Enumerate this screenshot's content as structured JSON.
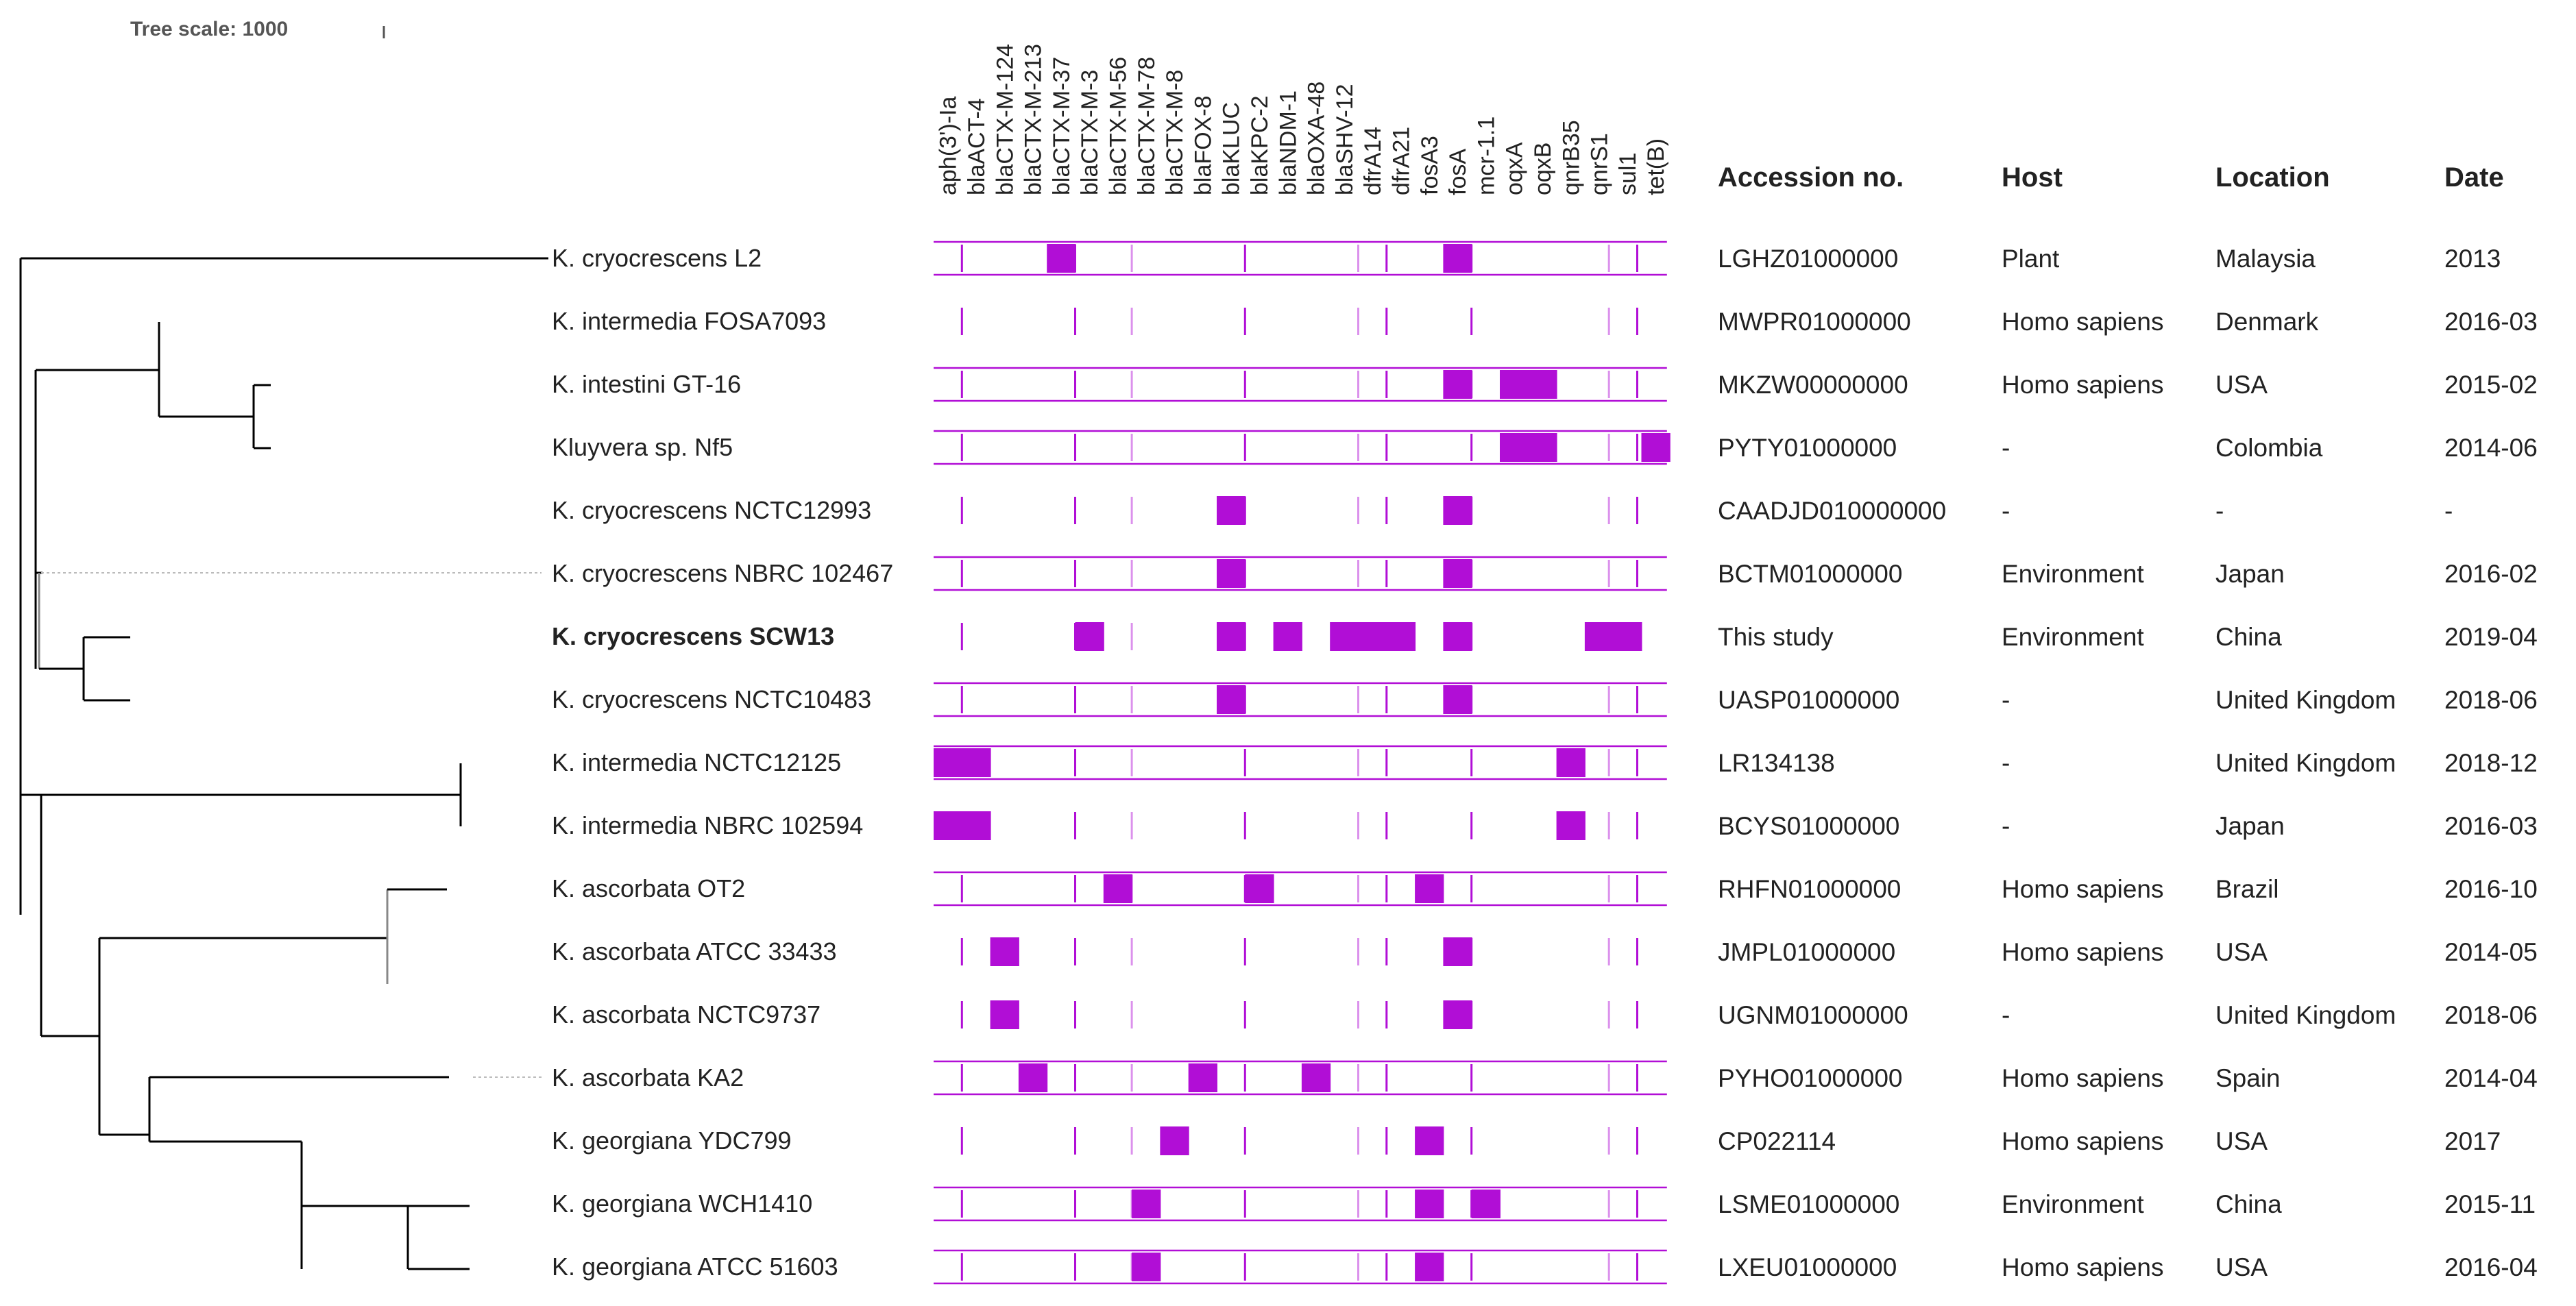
{
  "tree_scale": {
    "label": "Tree scale: 1000"
  },
  "headers": {
    "accession": "Accession no.",
    "host": "Host",
    "location": "Location",
    "date": "Date"
  },
  "genes": [
    "aph(3')-Ia",
    "blaACT-4",
    "blaCTX-M-124",
    "blaCTX-M-213",
    "blaCTX-M-37",
    "blaCTX-M-3",
    "blaCTX-M-56",
    "blaCTX-M-78",
    "blaCTX-M-8",
    "blaFOX-8",
    "blaKLUC",
    "blaKPC-2",
    "blaNDM-1",
    "blaOXA-48",
    "blaSHV-12",
    "dfrA14",
    "dfrA21",
    "fosA3",
    "fosA",
    "mcr-1.1",
    "oqxA",
    "oqxB",
    "qnrB35",
    "qnrS1",
    "sul1",
    "tet(B)"
  ],
  "colors": {
    "present": "#b10ed6",
    "line": "#b10ed6",
    "tick": "#b10ed6",
    "tree": "#000000",
    "text": "#222222"
  },
  "strains": [
    {
      "name": "K. cryocrescens L2",
      "bold": false,
      "accession": "LGHZ01000000",
      "host": "Plant",
      "location": "Malaysia",
      "date": "2013",
      "genes": [
        "blaCTX-M-37",
        "fosA"
      ]
    },
    {
      "name": "K. intermedia FOSA7093",
      "bold": false,
      "accession": "MWPR01000000",
      "host": "Homo sapiens",
      "location": "Denmark",
      "date": "2016-03",
      "genes": []
    },
    {
      "name": "K. intestini GT-16",
      "bold": false,
      "accession": "MKZW00000000",
      "host": "Homo sapiens",
      "location": "USA",
      "date": "2015-02",
      "genes": [
        "fosA",
        "oqxA",
        "oqxB"
      ]
    },
    {
      "name": "Kluyvera sp. Nf5",
      "bold": false,
      "accession": "PYTY01000000",
      "host": "-",
      "location": "Colombia",
      "date": "2014-06",
      "genes": [
        "oqxA",
        "oqxB",
        "tet(B)"
      ]
    },
    {
      "name": "K. cryocrescens NCTC12993",
      "bold": false,
      "accession": "CAADJD010000000",
      "host": "-",
      "location": "-",
      "date": "-",
      "genes": [
        "blaKLUC",
        "fosA"
      ]
    },
    {
      "name": "K. cryocrescens NBRC 102467",
      "bold": false,
      "accession": "BCTM01000000",
      "host": "Environment",
      "location": "Japan",
      "date": "2016-02",
      "genes": [
        "blaKLUC",
        "fosA"
      ]
    },
    {
      "name": "K. cryocrescens SCW13",
      "bold": true,
      "accession": "This study",
      "host": "Environment",
      "location": "China",
      "date": "2019-04",
      "genes": [
        "blaCTX-M-3",
        "blaKLUC",
        "blaNDM-1",
        "blaSHV-12",
        "dfrA14",
        "dfrA21",
        "fosA",
        "qnrS1",
        "sul1"
      ]
    },
    {
      "name": "K. cryocrescens NCTC10483",
      "bold": false,
      "accession": "UASP01000000",
      "host": "-",
      "location": "United Kingdom",
      "date": "2018-06",
      "genes": [
        "blaKLUC",
        "fosA"
      ]
    },
    {
      "name": "K. intermedia NCTC12125",
      "bold": false,
      "accession": "LR134138",
      "host": "-",
      "location": "United Kingdom",
      "date": "2018-12",
      "genes": [
        "aph(3')-Ia",
        "blaACT-4",
        "qnrB35"
      ]
    },
    {
      "name": "K. intermedia NBRC 102594",
      "bold": false,
      "accession": "BCYS01000000",
      "host": "-",
      "location": "Japan",
      "date": "2016-03",
      "genes": [
        "aph(3')-Ia",
        "blaACT-4",
        "qnrB35"
      ]
    },
    {
      "name": "K. ascorbata OT2",
      "bold": false,
      "accession": "RHFN01000000",
      "host": "Homo sapiens",
      "location": "Brazil",
      "date": "2016-10",
      "genes": [
        "blaCTX-M-56",
        "blaKPC-2",
        "fosA3"
      ]
    },
    {
      "name": "K. ascorbata ATCC 33433",
      "bold": false,
      "accession": "JMPL01000000",
      "host": "Homo sapiens",
      "location": "USA",
      "date": "2014-05",
      "genes": [
        "blaCTX-M-124",
        "fosA"
      ]
    },
    {
      "name": "K. ascorbata NCTC9737",
      "bold": false,
      "accession": "UGNM01000000",
      "host": "-",
      "location": "United Kingdom",
      "date": "2018-06",
      "genes": [
        "blaCTX-M-124",
        "fosA"
      ]
    },
    {
      "name": "K. ascorbata KA2",
      "bold": false,
      "accession": "PYHO01000000",
      "host": "Homo sapiens",
      "location": "Spain",
      "date": "2014-04",
      "genes": [
        "blaCTX-M-213",
        "blaFOX-8",
        "blaOXA-48"
      ]
    },
    {
      "name": "K. georgiana YDC799",
      "bold": false,
      "accession": "CP022114",
      "host": "Homo sapiens",
      "location": "USA",
      "date": "2017",
      "genes": [
        "blaCTX-M-8",
        "fosA3"
      ]
    },
    {
      "name": "K. georgiana WCH1410",
      "bold": false,
      "accession": "LSME01000000",
      "host": "Environment",
      "location": "China",
      "date": "2015-11",
      "genes": [
        "blaCTX-M-78",
        "fosA3",
        "mcr-1.1"
      ]
    },
    {
      "name": "K. georgiana ATCC 51603",
      "bold": false,
      "accession": "LXEU01000000",
      "host": "Homo sapiens",
      "location": "USA",
      "date": "2016-04",
      "genes": [
        "blaCTX-M-78",
        "fosA3"
      ]
    }
  ]
}
